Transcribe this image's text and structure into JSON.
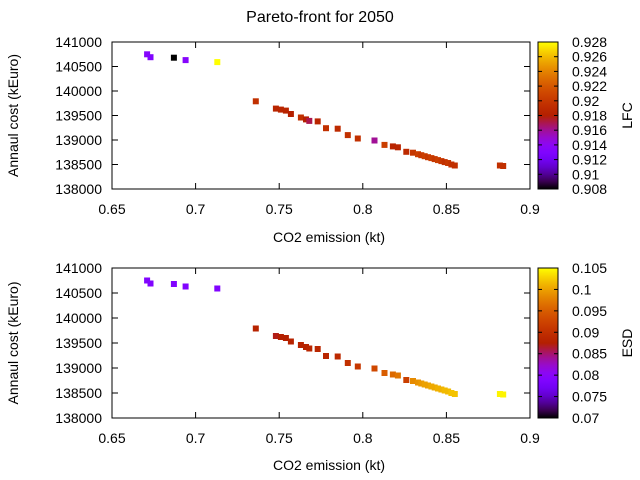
{
  "title": "Pareto-front for 2050",
  "chart_data": [
    {
      "type": "scatter",
      "xlabel": "CO2 emission (kt)",
      "ylabel": "Annaul cost (kEuro)",
      "xlim": [
        0.65,
        0.9
      ],
      "ylim": [
        138000,
        141000
      ],
      "xticks": [
        "0.65",
        "0.7",
        "0.75",
        "0.8",
        "0.85",
        "0.9"
      ],
      "yticks": [
        "138000",
        "138500",
        "139000",
        "139500",
        "140000",
        "140500",
        "141000"
      ],
      "colorbar": {
        "label": "LFC",
        "range": [
          0.908,
          0.928
        ],
        "ticks": [
          "0.908",
          "0.91",
          "0.912",
          "0.914",
          "0.916",
          "0.918",
          "0.92",
          "0.922",
          "0.924",
          "0.926",
          "0.928"
        ]
      },
      "points": [
        {
          "x": 0.671,
          "y": 140750,
          "c": 0.9135
        },
        {
          "x": 0.673,
          "y": 140690,
          "c": 0.913
        },
        {
          "x": 0.687,
          "y": 140680,
          "c": 0.908
        },
        {
          "x": 0.694,
          "y": 140630,
          "c": 0.9135
        },
        {
          "x": 0.713,
          "y": 140590,
          "c": 0.928
        },
        {
          "x": 0.736,
          "y": 139790,
          "c": 0.9195
        },
        {
          "x": 0.748,
          "y": 139640,
          "c": 0.9185
        },
        {
          "x": 0.751,
          "y": 139620,
          "c": 0.9185
        },
        {
          "x": 0.754,
          "y": 139600,
          "c": 0.9185
        },
        {
          "x": 0.757,
          "y": 139530,
          "c": 0.918
        },
        {
          "x": 0.763,
          "y": 139460,
          "c": 0.9195
        },
        {
          "x": 0.766,
          "y": 139420,
          "c": 0.918
        },
        {
          "x": 0.768,
          "y": 139390,
          "c": 0.917
        },
        {
          "x": 0.773,
          "y": 139380,
          "c": 0.9185
        },
        {
          "x": 0.778,
          "y": 139240,
          "c": 0.9195
        },
        {
          "x": 0.785,
          "y": 139230,
          "c": 0.919
        },
        {
          "x": 0.791,
          "y": 139100,
          "c": 0.9195
        },
        {
          "x": 0.797,
          "y": 139030,
          "c": 0.9195
        },
        {
          "x": 0.807,
          "y": 138990,
          "c": 0.916
        },
        {
          "x": 0.813,
          "y": 138900,
          "c": 0.9205
        },
        {
          "x": 0.818,
          "y": 138870,
          "c": 0.9185
        },
        {
          "x": 0.821,
          "y": 138850,
          "c": 0.9185
        },
        {
          "x": 0.826,
          "y": 138760,
          "c": 0.919
        },
        {
          "x": 0.83,
          "y": 138740,
          "c": 0.92
        },
        {
          "x": 0.833,
          "y": 138710,
          "c": 0.9205
        },
        {
          "x": 0.835,
          "y": 138690,
          "c": 0.92
        },
        {
          "x": 0.837,
          "y": 138670,
          "c": 0.9205
        },
        {
          "x": 0.839,
          "y": 138650,
          "c": 0.92
        },
        {
          "x": 0.841,
          "y": 138630,
          "c": 0.9205
        },
        {
          "x": 0.843,
          "y": 138610,
          "c": 0.92
        },
        {
          "x": 0.845,
          "y": 138590,
          "c": 0.9205
        },
        {
          "x": 0.847,
          "y": 138570,
          "c": 0.92
        },
        {
          "x": 0.849,
          "y": 138550,
          "c": 0.9195
        },
        {
          "x": 0.851,
          "y": 138530,
          "c": 0.92
        },
        {
          "x": 0.853,
          "y": 138500,
          "c": 0.9195
        },
        {
          "x": 0.855,
          "y": 138480,
          "c": 0.9195
        },
        {
          "x": 0.882,
          "y": 138480,
          "c": 0.9195
        },
        {
          "x": 0.884,
          "y": 138470,
          "c": 0.9195
        }
      ]
    },
    {
      "type": "scatter",
      "xlabel": "CO2 emission (kt)",
      "ylabel": "Annaul cost (kEuro)",
      "xlim": [
        0.65,
        0.9
      ],
      "ylim": [
        138000,
        141000
      ],
      "xticks": [
        "0.65",
        "0.7",
        "0.75",
        "0.8",
        "0.85",
        "0.9"
      ],
      "yticks": [
        "138000",
        "138500",
        "139000",
        "139500",
        "140000",
        "140500",
        "141000"
      ],
      "colorbar": {
        "label": "ESD",
        "range": [
          0.07,
          0.105
        ],
        "ticks": [
          "0.07",
          "0.075",
          "0.08",
          "0.085",
          "0.09",
          "0.095",
          "0.1",
          "0.105"
        ]
      },
      "points": [
        {
          "x": 0.671,
          "y": 140750,
          "c": 0.079
        },
        {
          "x": 0.673,
          "y": 140690,
          "c": 0.079
        },
        {
          "x": 0.687,
          "y": 140680,
          "c": 0.079
        },
        {
          "x": 0.694,
          "y": 140630,
          "c": 0.079
        },
        {
          "x": 0.713,
          "y": 140590,
          "c": 0.079
        },
        {
          "x": 0.736,
          "y": 139790,
          "c": 0.088
        },
        {
          "x": 0.748,
          "y": 139640,
          "c": 0.087
        },
        {
          "x": 0.751,
          "y": 139620,
          "c": 0.0875
        },
        {
          "x": 0.754,
          "y": 139600,
          "c": 0.0875
        },
        {
          "x": 0.757,
          "y": 139530,
          "c": 0.088
        },
        {
          "x": 0.763,
          "y": 139460,
          "c": 0.088
        },
        {
          "x": 0.766,
          "y": 139420,
          "c": 0.088
        },
        {
          "x": 0.768,
          "y": 139390,
          "c": 0.0885
        },
        {
          "x": 0.773,
          "y": 139380,
          "c": 0.0885
        },
        {
          "x": 0.778,
          "y": 139240,
          "c": 0.0885
        },
        {
          "x": 0.785,
          "y": 139230,
          "c": 0.089
        },
        {
          "x": 0.791,
          "y": 139100,
          "c": 0.09
        },
        {
          "x": 0.797,
          "y": 139030,
          "c": 0.091
        },
        {
          "x": 0.807,
          "y": 138990,
          "c": 0.093
        },
        {
          "x": 0.813,
          "y": 138900,
          "c": 0.095
        },
        {
          "x": 0.818,
          "y": 138870,
          "c": 0.096
        },
        {
          "x": 0.821,
          "y": 138850,
          "c": 0.097
        },
        {
          "x": 0.826,
          "y": 138760,
          "c": 0.092
        },
        {
          "x": 0.83,
          "y": 138740,
          "c": 0.0985
        },
        {
          "x": 0.833,
          "y": 138710,
          "c": 0.099
        },
        {
          "x": 0.835,
          "y": 138690,
          "c": 0.0995
        },
        {
          "x": 0.837,
          "y": 138670,
          "c": 0.1
        },
        {
          "x": 0.839,
          "y": 138650,
          "c": 0.1
        },
        {
          "x": 0.841,
          "y": 138630,
          "c": 0.1005
        },
        {
          "x": 0.843,
          "y": 138610,
          "c": 0.1005
        },
        {
          "x": 0.845,
          "y": 138590,
          "c": 0.101
        },
        {
          "x": 0.847,
          "y": 138570,
          "c": 0.101
        },
        {
          "x": 0.849,
          "y": 138550,
          "c": 0.1015
        },
        {
          "x": 0.851,
          "y": 138530,
          "c": 0.1015
        },
        {
          "x": 0.853,
          "y": 138500,
          "c": 0.102
        },
        {
          "x": 0.855,
          "y": 138480,
          "c": 0.102
        },
        {
          "x": 0.882,
          "y": 138480,
          "c": 0.1045
        },
        {
          "x": 0.884,
          "y": 138470,
          "c": 0.1045
        }
      ]
    }
  ]
}
